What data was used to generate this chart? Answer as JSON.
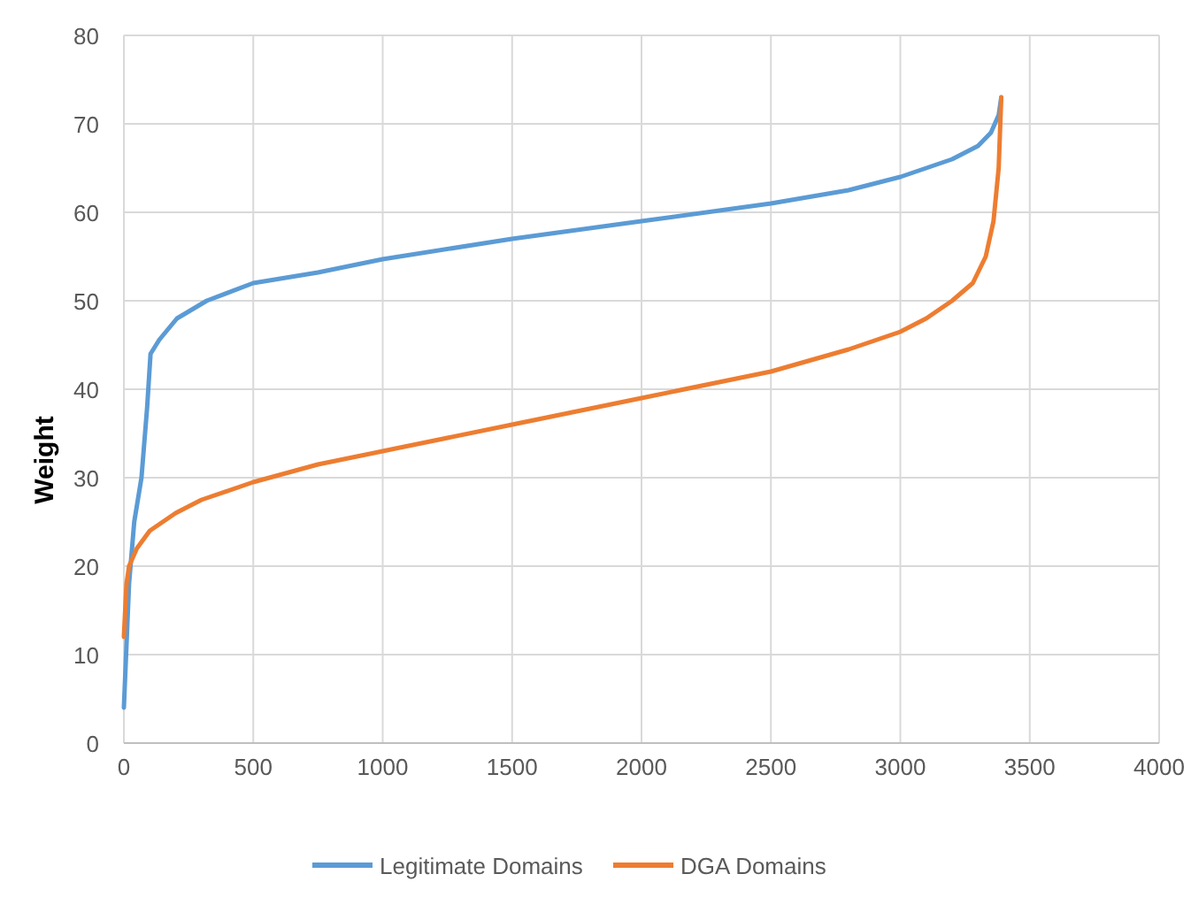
{
  "chart_data": {
    "type": "line",
    "ylabel": "Weight",
    "xlim": [
      0,
      4000
    ],
    "xticks": [
      0,
      500,
      1000,
      1500,
      2000,
      2500,
      3000,
      3500,
      4000
    ],
    "ylim": [
      0,
      80
    ],
    "yticks": [
      0,
      10,
      20,
      30,
      40,
      50,
      60,
      70,
      80
    ],
    "grid": true,
    "legend": "bottom",
    "line_style": "solid",
    "marker": "none",
    "series": [
      {
        "name": "Legitimate Domains",
        "color": "#5b9bd5",
        "x": [
          0,
          20,
          40,
          68,
          90,
          103,
          137,
          205,
          320,
          500,
          750,
          1000,
          1500,
          2000,
          2500,
          2800,
          3000,
          3200,
          3300,
          3350,
          3380,
          3390
        ],
        "values": [
          4,
          18,
          25,
          30,
          38,
          44,
          45.6,
          48,
          50,
          52,
          53.2,
          54.7,
          57,
          59,
          61,
          62.5,
          64,
          66,
          67.5,
          69,
          71,
          73
        ]
      },
      {
        "name": "DGA Domains",
        "color": "#ed7d31",
        "x": [
          0,
          10,
          20,
          50,
          100,
          200,
          300,
          500,
          750,
          1000,
          1500,
          2000,
          2500,
          2800,
          3000,
          3100,
          3200,
          3280,
          3330,
          3360,
          3380,
          3390
        ],
        "values": [
          12,
          18,
          20,
          22,
          24,
          26,
          27.5,
          29.5,
          31.5,
          33,
          36,
          39,
          42,
          44.5,
          46.5,
          48,
          50,
          52,
          55,
          59,
          65,
          73
        ]
      }
    ]
  }
}
